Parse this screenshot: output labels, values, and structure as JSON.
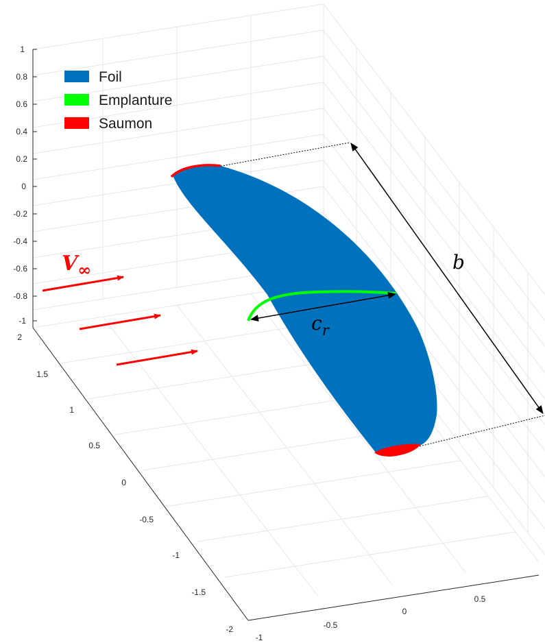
{
  "axes": {
    "z_ticks": [
      "1",
      "0.8",
      "0.6",
      "0.4",
      "0.2",
      "0",
      "-0.2",
      "-0.4",
      "-0.6",
      "-0.8",
      "-1"
    ],
    "y_ticks": [
      "2",
      "1.5",
      "1",
      "0.5",
      "0",
      "-0.5",
      "-1",
      "-1.5",
      "-2"
    ],
    "x_ticks": [
      "-1",
      "-0.5",
      "0",
      "0.5"
    ]
  },
  "legend": [
    {
      "label": "Foil",
      "color": "#0072BD"
    },
    {
      "label": "Emplanture",
      "color": "#00FF00"
    },
    {
      "label": "Saumon",
      "color": "#FF0000"
    }
  ],
  "annotations": {
    "velocity_symbol": "V",
    "velocity_subscript": "∞",
    "span_label": "b",
    "chord_symbol": "c",
    "chord_subscript": "r"
  },
  "colors": {
    "foil": "#0072BD",
    "root": "#00FF00",
    "tip": "#FF0000",
    "flow_arrow": "#FF0000",
    "dimension": "#000000"
  }
}
